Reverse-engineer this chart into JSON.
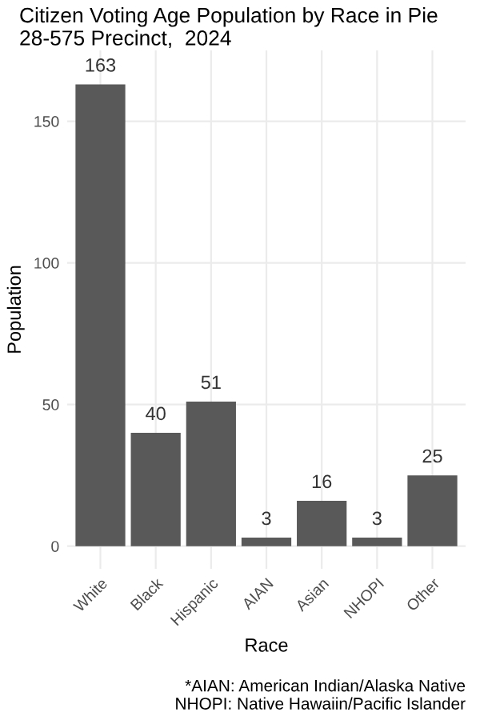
{
  "chart_data": {
    "type": "bar",
    "title": "Citizen Voting Age Population by Race in Pie\n28-575 Precinct,  2024",
    "xlabel": "Race",
    "ylabel": "Population",
    "categories": [
      "White",
      "Black",
      "Hispanic",
      "AIAN",
      "Asian",
      "NHOPI",
      "Other"
    ],
    "values": [
      163,
      40,
      51,
      3,
      16,
      3,
      25
    ],
    "color": "#595959",
    "data_labels": true,
    "ylim": [
      -8,
      175
    ],
    "yticks": [
      0,
      50,
      100,
      150
    ],
    "grid": true,
    "annotations": [
      "*AIAN: American Indian/Alaska Native\nNHOPI: Native Hawaiin/Pacific Islander"
    ]
  }
}
